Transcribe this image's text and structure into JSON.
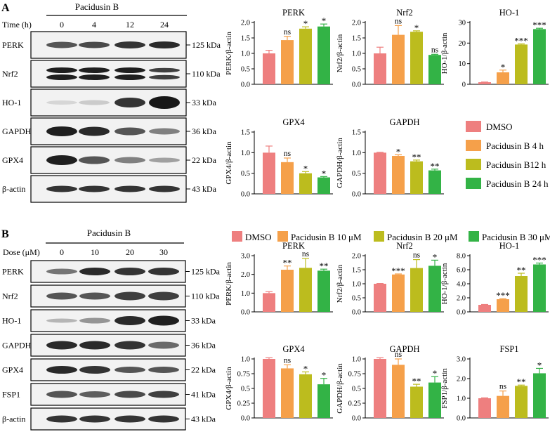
{
  "colors": {
    "dmso": "#ee7f7f",
    "c2": "#f5a04a",
    "c3": "#bcbc1e",
    "c4": "#33b346"
  },
  "panelA": {
    "label": "A",
    "treatment": "Pacidusin B",
    "axis_label": "Time  (h)",
    "conditions": [
      "0",
      "4",
      "12",
      "24"
    ],
    "blots": [
      {
        "name": "PERK",
        "size": "125 kDa"
      },
      {
        "name": "Nrf2",
        "size": "110 kDa"
      },
      {
        "name": "HO-1",
        "size": "33 kDa"
      },
      {
        "name": "GAPDH",
        "size": "36 kDa"
      },
      {
        "name": "GPX4",
        "size": "22 kDa"
      },
      {
        "name": "β-actin",
        "size": "43 kDa"
      }
    ],
    "legend": [
      "DMSO",
      "Pacidusin B 4 h",
      "Pacidusin B12 h",
      "Pacidusin B 24 h"
    ]
  },
  "panelB": {
    "label": "B",
    "treatment": "Pacidusin B",
    "axis_label": "Dose (μM)",
    "conditions": [
      "0",
      "10",
      "20",
      "30"
    ],
    "blots": [
      {
        "name": "PERK",
        "size": "125 kDa"
      },
      {
        "name": "Nrf2",
        "size": "110 kDa"
      },
      {
        "name": "HO-1",
        "size": "33 kDa"
      },
      {
        "name": "GAPDH",
        "size": "36 kDa"
      },
      {
        "name": "GPX4",
        "size": "22 kDa"
      },
      {
        "name": "FSP1",
        "size": "41 kDa"
      },
      {
        "name": "β-actin",
        "size": "43 kDa"
      }
    ],
    "legend": [
      "DMSO",
      "Pacidusin B 10 μM",
      "Pacidusin B 20 μM",
      "Pacidusin B 30 μM"
    ]
  },
  "chart_data": [
    {
      "type": "bar",
      "panel": "A",
      "title": "PERK",
      "ylabel": "PERK/β-actin",
      "ylim": [
        0,
        2.0
      ],
      "yticks": [
        "0.0",
        "0.5",
        "1.0",
        "1.5",
        "2.0"
      ],
      "values": [
        1.0,
        1.43,
        1.8,
        1.87
      ],
      "errors": [
        0.1,
        0.12,
        0.06,
        0.08
      ],
      "annotations": [
        "",
        "ns",
        "*",
        "*"
      ]
    },
    {
      "type": "bar",
      "panel": "A",
      "title": "Nrf2",
      "ylabel": "Nrf2/β-actin",
      "ylim": [
        0,
        2.0
      ],
      "yticks": [
        "0.0",
        "0.5",
        "1.0",
        "1.5",
        "2.0"
      ],
      "values": [
        1.0,
        1.6,
        1.7,
        0.95
      ],
      "errors": [
        0.2,
        0.3,
        0.03,
        0.02
      ],
      "annotations": [
        "",
        "ns",
        "*",
        "ns"
      ]
    },
    {
      "type": "bar",
      "panel": "A",
      "title": "HO-1",
      "ylabel": "HO-1/β-actin",
      "ylim": [
        0,
        30
      ],
      "yticks": [
        "0",
        "10",
        "20",
        "30"
      ],
      "values": [
        1.0,
        5.8,
        19.3,
        26.8
      ],
      "errors": [
        0.1,
        1.1,
        0.3,
        0.4
      ],
      "annotations": [
        "",
        "*",
        "***",
        "***"
      ]
    },
    {
      "type": "bar",
      "panel": "A",
      "title": "GPX4",
      "ylabel": "GPX4/β-actin",
      "ylim": [
        0,
        1.5
      ],
      "yticks": [
        "0.0",
        "0.5",
        "1.0",
        "1.5"
      ],
      "values": [
        1.0,
        0.77,
        0.5,
        0.4
      ],
      "errors": [
        0.16,
        0.1,
        0.04,
        0.02
      ],
      "annotations": [
        "",
        "ns",
        "*",
        "*"
      ]
    },
    {
      "type": "bar",
      "panel": "A",
      "title": "GAPDH",
      "ylabel": "GAPDH/β-actin",
      "ylim": [
        0,
        1.5
      ],
      "yticks": [
        "0.0",
        "0.5",
        "1.0",
        "1.5"
      ],
      "values": [
        1.0,
        0.92,
        0.79,
        0.57
      ],
      "errors": [
        0.01,
        0.03,
        0.03,
        0.03
      ],
      "annotations": [
        "",
        "*",
        "**",
        "**"
      ]
    },
    {
      "type": "bar",
      "panel": "B",
      "title": "PERK",
      "ylabel": "PERK/β-actin",
      "ylim": [
        0,
        3.0
      ],
      "yticks": [
        "0.0",
        "1.0",
        "2.0",
        "3.0"
      ],
      "values": [
        1.0,
        2.25,
        2.35,
        2.2
      ],
      "errors": [
        0.08,
        0.2,
        0.5,
        0.08
      ],
      "annotations": [
        "",
        "**",
        "ns",
        "**"
      ]
    },
    {
      "type": "bar",
      "panel": "B",
      "title": "Nrf2",
      "ylabel": "Nrf2/β-actin",
      "ylim": [
        0,
        2.0
      ],
      "yticks": [
        "0.0",
        "0.5",
        "1.0",
        "1.5",
        "2.0"
      ],
      "values": [
        1.0,
        1.33,
        1.56,
        1.64
      ],
      "errors": [
        0.01,
        0.02,
        0.3,
        0.2
      ],
      "annotations": [
        "",
        "***",
        "ns",
        "*"
      ]
    },
    {
      "type": "bar",
      "panel": "B",
      "title": "HO-1",
      "ylabel": "HO-1/β-actin",
      "ylim": [
        0,
        8.0
      ],
      "yticks": [
        "0.0",
        "2.0",
        "4.0",
        "6.0",
        "8.0"
      ],
      "values": [
        1.0,
        1.8,
        5.1,
        6.75
      ],
      "errors": [
        0.05,
        0.08,
        0.4,
        0.2
      ],
      "annotations": [
        "",
        "***",
        "**",
        "***"
      ]
    },
    {
      "type": "bar",
      "panel": "B",
      "title": "GPX4",
      "ylabel": "GPX4/β-actin",
      "ylim": [
        0,
        1.0
      ],
      "yticks": [
        "0.0",
        "0.25",
        "0.5",
        "0.75",
        "1.0"
      ],
      "values": [
        1.0,
        0.84,
        0.74,
        0.57
      ],
      "errors": [
        0.02,
        0.06,
        0.04,
        0.1
      ],
      "annotations": [
        "",
        "ns",
        "*",
        "*"
      ]
    },
    {
      "type": "bar",
      "panel": "B",
      "title": "GAPDH",
      "ylabel": "GAPDH/β-actin",
      "ylim": [
        0,
        1.0
      ],
      "yticks": [
        "0.0",
        "0.25",
        "0.5",
        "0.75",
        "1.0"
      ],
      "values": [
        1.0,
        0.9,
        0.53,
        0.6
      ],
      "errors": [
        0.02,
        0.1,
        0.04,
        0.1
      ],
      "annotations": [
        "",
        "ns",
        "**",
        "*"
      ]
    },
    {
      "type": "bar",
      "panel": "B",
      "title": "FSP1",
      "ylabel": "FSP1/β-actin",
      "ylim": [
        0,
        3.0
      ],
      "yticks": [
        "0.0",
        "1.0",
        "2.0",
        "3.0"
      ],
      "values": [
        1.0,
        1.12,
        1.63,
        2.27
      ],
      "errors": [
        0.02,
        0.25,
        0.04,
        0.25
      ],
      "annotations": [
        "",
        "ns",
        "**",
        "*"
      ]
    }
  ]
}
